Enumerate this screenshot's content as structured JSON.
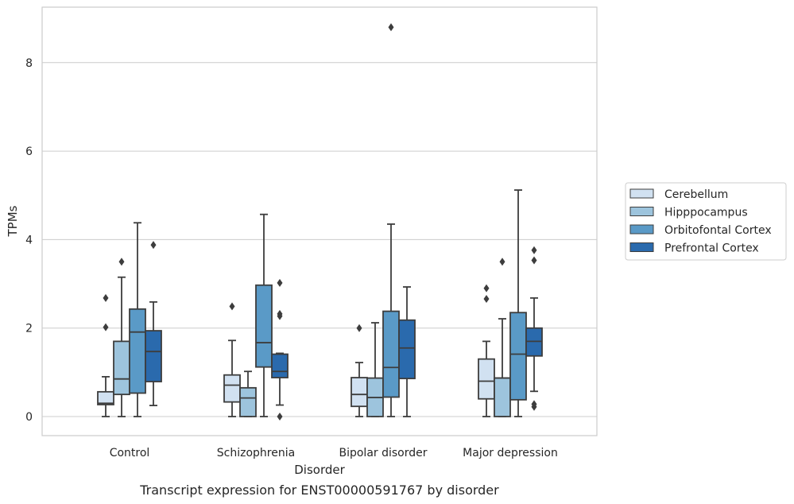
{
  "chart_data": {
    "type": "box",
    "title": "",
    "caption": "Transcript expression for ENST00000591767 by disorder",
    "xlabel": "Disorder",
    "ylabel": "TPMs",
    "ylim": [
      -0.4,
      9.3
    ],
    "yticks": [
      0,
      2,
      4,
      6,
      8
    ],
    "grid": "horizontal",
    "legend_position": "right",
    "categories": [
      "Control",
      "Schizophrenia",
      "Bipolar disorder",
      "Major depression"
    ],
    "series": [
      {
        "name": "Cerebellum",
        "color": "#d1e1f1",
        "boxes": [
          {
            "whisker_low": 0,
            "q1": 0.27,
            "median": 0.3,
            "q3": 0.56,
            "whisker_high": 0.9,
            "outliers": [
              2.02,
              2.68
            ]
          },
          {
            "whisker_low": 0,
            "q1": 0.33,
            "median": 0.71,
            "q3": 0.94,
            "whisker_high": 1.72,
            "outliers": [
              2.49
            ]
          },
          {
            "whisker_low": 0,
            "q1": 0.23,
            "median": 0.5,
            "q3": 0.88,
            "whisker_high": 1.22,
            "outliers": [
              2.0
            ]
          },
          {
            "whisker_low": 0,
            "q1": 0.4,
            "median": 0.8,
            "q3": 1.3,
            "whisker_high": 1.7,
            "outliers": [
              2.66,
              2.9
            ]
          }
        ]
      },
      {
        "name": "Hipppocampus",
        "color": "#9dc4dd",
        "boxes": [
          {
            "whisker_low": 0,
            "q1": 0.5,
            "median": 0.85,
            "q3": 1.7,
            "whisker_high": 3.15,
            "outliers": [
              3.5
            ]
          },
          {
            "whisker_low": 0,
            "q1": 0,
            "median": 0.42,
            "q3": 0.65,
            "whisker_high": 1.02,
            "outliers": []
          },
          {
            "whisker_low": 0,
            "q1": 0,
            "median": 0.43,
            "q3": 0.87,
            "whisker_high": 2.12,
            "outliers": []
          },
          {
            "whisker_low": 0,
            "q1": 0,
            "median": 0.87,
            "q3": 0.87,
            "whisker_high": 2.21,
            "outliers": [
              3.5
            ]
          }
        ]
      },
      {
        "name": "Orbitofontal Cortex",
        "color": "#5a9ac7",
        "boxes": [
          {
            "whisker_low": 0,
            "q1": 0.53,
            "median": 1.91,
            "q3": 2.43,
            "whisker_high": 4.38,
            "outliers": []
          },
          {
            "whisker_low": 0,
            "q1": 1.12,
            "median": 1.67,
            "q3": 2.97,
            "whisker_high": 4.57,
            "outliers": []
          },
          {
            "whisker_low": 0,
            "q1": 0.44,
            "median": 1.11,
            "q3": 2.38,
            "whisker_high": 4.35,
            "outliers": [
              8.8
            ]
          },
          {
            "whisker_low": 0,
            "q1": 0.38,
            "median": 1.41,
            "q3": 2.35,
            "whisker_high": 5.12,
            "outliers": []
          }
        ]
      },
      {
        "name": "Prefrontal Cortex",
        "color": "#2a6aad",
        "boxes": [
          {
            "whisker_low": 0.25,
            "q1": 0.79,
            "median": 1.47,
            "q3": 1.94,
            "whisker_high": 2.59,
            "outliers": [
              3.88
            ]
          },
          {
            "whisker_low": 0.26,
            "q1": 0.88,
            "median": 1.02,
            "q3": 1.41,
            "whisker_high": 1.43,
            "outliers": [
              0,
              2.27,
              2.32,
              3.02
            ]
          },
          {
            "whisker_low": 0,
            "q1": 0.86,
            "median": 1.55,
            "q3": 2.18,
            "whisker_high": 2.93,
            "outliers": []
          },
          {
            "whisker_low": 0.57,
            "q1": 1.37,
            "median": 1.7,
            "q3": 2.0,
            "whisker_high": 2.68,
            "outliers": [
              0.22,
              0.28,
              3.53,
              3.76
            ]
          }
        ]
      }
    ]
  }
}
